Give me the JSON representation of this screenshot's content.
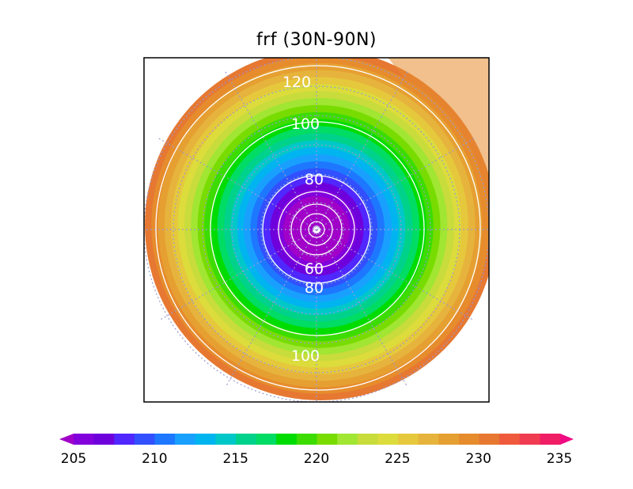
{
  "title": "frf (30N-90N)",
  "map": {
    "projection": "north-polar-stereographic",
    "lat_range": [
      "30N",
      "90N"
    ],
    "field_range": [
      205,
      235
    ],
    "gridlines": "dotted"
  },
  "contours": {
    "line_color": "#ffffff",
    "labels": [
      "120",
      "100",
      "80",
      "60",
      "80",
      "100"
    ]
  },
  "colorbar": {
    "ticks": [
      "205",
      "210",
      "215",
      "220",
      "225",
      "230",
      "235"
    ],
    "colors": [
      "#a000c8",
      "#8200dc",
      "#6e00dc",
      "#5028ff",
      "#3250ff",
      "#1e78ff",
      "#19a0ff",
      "#00b4f0",
      "#00c8c8",
      "#00d28c",
      "#00dc64",
      "#00dc00",
      "#3cdc00",
      "#78dc00",
      "#a0e632",
      "#c8dc3c",
      "#dcdc3c",
      "#e6c83c",
      "#e6b43c",
      "#e6a032",
      "#e68c2d",
      "#e67832",
      "#f05a3c",
      "#f03c50",
      "#f01e64",
      "#f00a82"
    ]
  }
}
